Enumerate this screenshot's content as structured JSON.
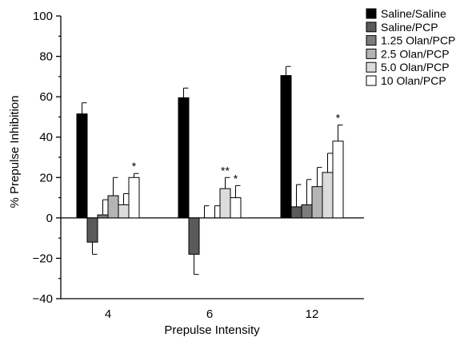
{
  "chart_data": {
    "type": "bar",
    "title": "",
    "xlabel": "Prepulse Intensity",
    "ylabel": "% Prepulse Inhibition",
    "categories": [
      "4",
      "6",
      "12"
    ],
    "ylim": [
      -40,
      100
    ],
    "yticks": [
      -40,
      -20,
      0,
      20,
      40,
      60,
      80,
      100
    ],
    "ytick_labels": [
      "−40",
      "−20",
      "0",
      "20",
      "40",
      "60",
      "80",
      "100"
    ],
    "grid": false,
    "legend_position": "top-right",
    "series": [
      {
        "name": "Saline/Saline",
        "color": "#000000",
        "values": [
          51.5,
          59.5,
          70.5
        ],
        "errors": [
          5.5,
          4.8,
          4.5
        ]
      },
      {
        "name": "Saline/PCP",
        "color": "#5a5a5a",
        "values": [
          -12,
          -18,
          5.5
        ],
        "errors": [
          6,
          10,
          11
        ]
      },
      {
        "name": "1.25 Olan/PCP",
        "color": "#7c7c7c",
        "values": [
          1.5,
          0,
          6.5
        ],
        "errors": [
          7.5,
          6,
          12.5
        ]
      },
      {
        "name": "2.5 Olan/PCP",
        "color": "#b4b4b4",
        "values": [
          11,
          0,
          15.5
        ],
        "errors": [
          9,
          6,
          9.5
        ]
      },
      {
        "name": "5.0 Olan/PCP",
        "color": "#dcdcdc",
        "values": [
          6.5,
          14.5,
          22.5
        ],
        "errors": [
          5.5,
          5.5,
          9.5
        ]
      },
      {
        "name": "10 Olan/PCP",
        "color": "#ffffff",
        "values": [
          20,
          10,
          38
        ],
        "errors": [
          2,
          6,
          8
        ]
      }
    ],
    "annotations": [
      {
        "text": "*",
        "category": "4",
        "series": "10 Olan/PCP"
      },
      {
        "text": "**",
        "category": "6",
        "series": "5.0 Olan/PCP"
      },
      {
        "text": "*",
        "category": "6",
        "series": "10 Olan/PCP"
      },
      {
        "text": "*",
        "category": "12",
        "series": "10 Olan/PCP"
      }
    ]
  }
}
